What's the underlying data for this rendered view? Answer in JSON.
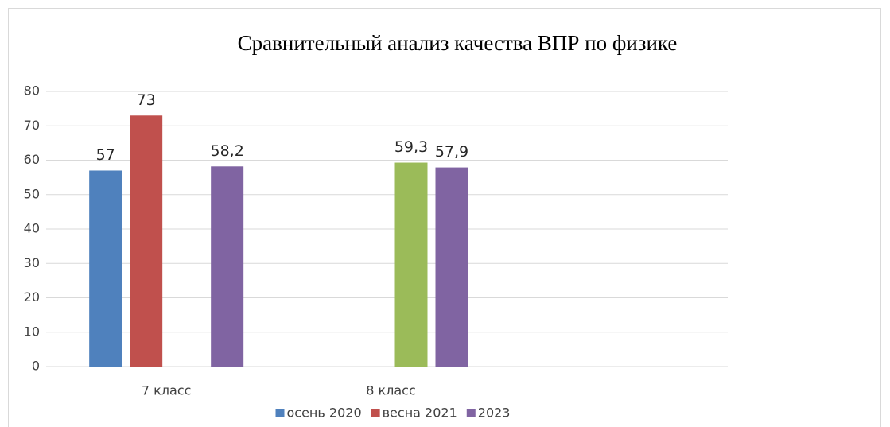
{
  "chart_data": {
    "type": "bar",
    "title": "Сравнительный анализ качества ВПР по физике",
    "categories": [
      "7 класс",
      "8 класс",
      null
    ],
    "series": [
      {
        "name": "осень 2020",
        "color": "#4f81bd",
        "values": [
          57,
          null,
          null
        ],
        "value_labels": [
          "57",
          null,
          null
        ]
      },
      {
        "name": "весна 2021",
        "color": "#c0504d",
        "values": [
          73,
          null,
          null
        ],
        "value_labels": [
          "73",
          null,
          null
        ]
      },
      {
        "name": null,
        "color": "#9bbb59",
        "values": [
          null,
          59.3,
          null
        ],
        "value_labels": [
          null,
          "59,3",
          null
        ]
      },
      {
        "name": "2023",
        "color": "#8064a2",
        "values": [
          58.2,
          57.9,
          null
        ],
        "value_labels": [
          "58,2",
          "57,9",
          null
        ]
      }
    ],
    "ylim": [
      0,
      80
    ],
    "yticks": [
      0,
      10,
      20,
      30,
      40,
      50,
      60,
      70,
      80
    ],
    "grid": true,
    "legend": "bottom"
  }
}
